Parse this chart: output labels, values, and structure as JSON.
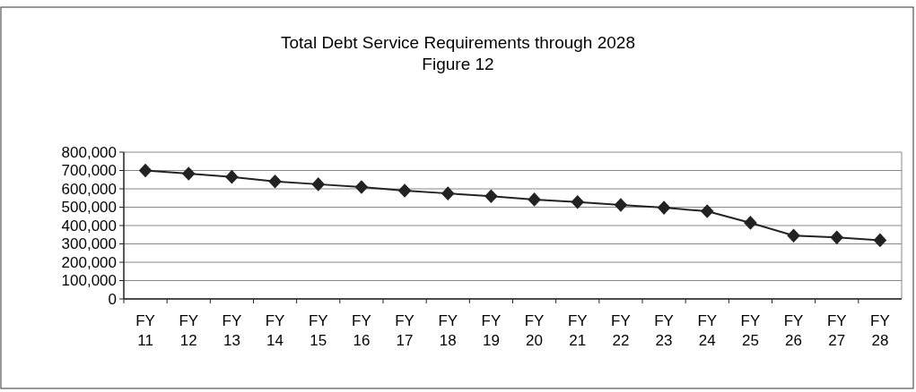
{
  "chart_data": {
    "type": "line",
    "title": "Total Debt Service Requirements through 2028",
    "subtitle": "Figure 12",
    "categories": [
      "FY 11",
      "FY 12",
      "FY 13",
      "FY 14",
      "FY 15",
      "FY 16",
      "FY 17",
      "FY 18",
      "FY 19",
      "FY 20",
      "FY 21",
      "FY 22",
      "FY 23",
      "FY 24",
      "FY 25",
      "FY 26",
      "FY 27",
      "FY 28"
    ],
    "series": [
      {
        "color": "#222222",
        "values": [
          700000,
          683000,
          665000,
          640000,
          625000,
          610000,
          590000,
          575000,
          560000,
          542000,
          528000,
          512000,
          497000,
          478000,
          415000,
          345000,
          335000,
          320000
        ]
      }
    ],
    "ylim": [
      0,
      800000
    ],
    "yticks": [
      {
        "value": 0,
        "label": "0"
      },
      {
        "value": 100000,
        "label": "100,000"
      },
      {
        "value": 200000,
        "label": "200,000"
      },
      {
        "value": 300000,
        "label": "300,000"
      },
      {
        "value": 400000,
        "label": "400,000"
      },
      {
        "value": 500000,
        "label": "500,000"
      },
      {
        "value": 600000,
        "label": "600,000"
      },
      {
        "value": 700000,
        "label": "700,000"
      },
      {
        "value": 800000,
        "label": "800,000"
      }
    ],
    "grid": "y",
    "marker": "diamond",
    "line_style": "solid"
  }
}
